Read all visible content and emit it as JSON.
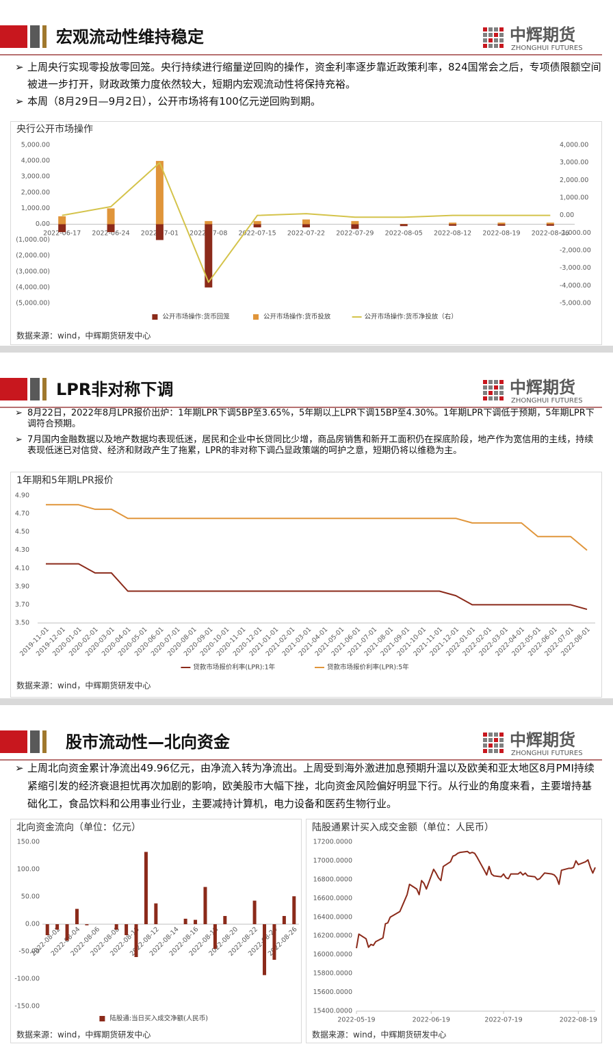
{
  "logo": {
    "name": "中辉期货",
    "name_en": "ZHONGHUI FUTURES"
  },
  "sections": [
    {
      "title": "宏观流动性维持稳定",
      "bullets": [
        "上周央行实现零投放零回笼。央行持续进行缩量逆回购的操作，资金利率逐步靠近政策利率，824国常会之后，专项债限额空间被进一步打开，财政政策力度依然较大，短期内宏观流动性将保持充裕。",
        "本周（8月29日—9月2日），公开市场将有100亿元逆回购到期。"
      ]
    },
    {
      "title": "LPR非对称下调",
      "bullets": [
        "8月22日，2022年8月LPR报价出炉：1年期LPR下调5BP至3.65%，5年期以上LPR下调15BP至4.30%。1年期LPR下调低于预期，5年期LPR下调符合预期。",
        "7月国内金融数据以及地产数据均表现低迷，居民和企业中长贷同比少增，商品房销售和新开工面积仍在探底阶段，地产作为宽信用的主线，持续表现低迷已对信贷、经济和财政产生了拖累，LPR的非对称下调凸显政策端的呵护之意，短期仍将以维稳为主。"
      ]
    },
    {
      "title": "股市流动性—北向资金",
      "bullets": [
        "上周北向资金累计净流出49.96亿元，由净流入转为净流出。上周受到海外激进加息预期升温以及欧美和亚太地区8月PMI持续紧缩引发的经济衰退担忧再次加剧的影响，欧美股市大幅下挫，北向资金风险偏好明显下行。从行业的角度来看，主要增持基础化工，食品饮料和公用事业行业，主要减持计算机，电力设备和医药生物行业。"
      ]
    }
  ],
  "chart_data": [
    {
      "type": "bar",
      "title": "央行公开市场操作",
      "source": "数据来源：wind，中辉期货研发中心",
      "categories": [
        "2022-06-17",
        "2022-06-24",
        "2022-07-01",
        "2022-07-08",
        "2022-07-15",
        "2022-07-22",
        "2022-07-29",
        "2022-08-05",
        "2022-08-12",
        "2022-08-19",
        "2022-08-26"
      ],
      "series": [
        {
          "name": "公开市场操作:货币回笼",
          "color": "#8B2A1A",
          "values": [
            -500,
            -500,
            -1000,
            -4000,
            -200,
            -200,
            -300,
            -120,
            -100,
            -100,
            -100
          ]
        },
        {
          "name": "公开市场操作:货币投放",
          "color": "#E0953A",
          "values": [
            500,
            1000,
            4000,
            200,
            200,
            300,
            200,
            20,
            100,
            100,
            100
          ]
        },
        {
          "name": "公开市场操作:货币净投放（右）",
          "color": "#D4C34A",
          "type": "line",
          "axis": "y2",
          "values": [
            0,
            500,
            3000,
            -3800,
            0,
            100,
            -100,
            -100,
            0,
            0,
            0
          ]
        }
      ],
      "ylim": [
        -5000,
        5000
      ],
      "yticks": [
        {
          "value": 5000,
          "label": "5,000.00"
        },
        {
          "value": 4000,
          "label": "4,000.00"
        },
        {
          "value": 3000,
          "label": "3,000.00"
        },
        {
          "value": 2000,
          "label": "2,000.00"
        },
        {
          "value": 1000,
          "label": "1,000.00"
        },
        {
          "value": 0,
          "label": "0.00"
        },
        {
          "value": -1000,
          "label": "(1,000.00)"
        },
        {
          "value": -2000,
          "label": "(2,000.00)"
        },
        {
          "value": -3000,
          "label": "(3,000.00)"
        },
        {
          "value": -4000,
          "label": "(4,000.00)"
        },
        {
          "value": -5000,
          "label": "(5,000.00)"
        }
      ],
      "negative_tick_color": "#C00000",
      "y2lim": [
        -5000,
        4000
      ],
      "y2ticks": [
        {
          "value": 4000,
          "label": "4,000.00"
        },
        {
          "value": 3000,
          "label": "3,000.00"
        },
        {
          "value": 2000,
          "label": "2,000.00"
        },
        {
          "value": 1000,
          "label": "1,000.00"
        },
        {
          "value": 0,
          "label": "0.00"
        },
        {
          "value": -1000,
          "label": "-1,000.00"
        },
        {
          "value": -2000,
          "label": "-2,000.00"
        },
        {
          "value": -3000,
          "label": "-3,000.00"
        },
        {
          "value": -4000,
          "label": "-4,000.00"
        },
        {
          "value": -5000,
          "label": "-5,000.00"
        }
      ]
    },
    {
      "type": "line",
      "title": "1年期和5年期LPR报价",
      "source": "数据来源：wind，中辉期货研发中心",
      "categories": [
        "2019-11-01",
        "2019-12-01",
        "2020-01-01",
        "2020-02-01",
        "2020-03-01",
        "2020-04-01",
        "2020-05-01",
        "2020-06-01",
        "2020-07-01",
        "2020-08-01",
        "2020-09-01",
        "2020-10-01",
        "2020-11-01",
        "2020-12-01",
        "2021-01-01",
        "2021-02-01",
        "2021-03-01",
        "2021-04-01",
        "2021-05-01",
        "2021-06-01",
        "2021-07-01",
        "2021-08-01",
        "2021-09-01",
        "2021-10-01",
        "2021-11-01",
        "2021-12-01",
        "2022-01-01",
        "2022-02-01",
        "2022-03-01",
        "2022-04-01",
        "2022-05-01",
        "2022-06-01",
        "2022-07-01",
        "2022-08-01"
      ],
      "series": [
        {
          "name": "贷款市场报价利率(LPR):1年",
          "color": "#8B2A1A",
          "values": [
            4.15,
            4.15,
            4.15,
            4.05,
            4.05,
            3.85,
            3.85,
            3.85,
            3.85,
            3.85,
            3.85,
            3.85,
            3.85,
            3.85,
            3.85,
            3.85,
            3.85,
            3.85,
            3.85,
            3.85,
            3.85,
            3.85,
            3.85,
            3.85,
            3.85,
            3.8,
            3.7,
            3.7,
            3.7,
            3.7,
            3.7,
            3.7,
            3.7,
            3.65
          ]
        },
        {
          "name": "贷款市场报价利率(LPR):5年",
          "color": "#E0953A",
          "values": [
            4.8,
            4.8,
            4.8,
            4.75,
            4.75,
            4.65,
            4.65,
            4.65,
            4.65,
            4.65,
            4.65,
            4.65,
            4.65,
            4.65,
            4.65,
            4.65,
            4.65,
            4.65,
            4.65,
            4.65,
            4.65,
            4.65,
            4.65,
            4.65,
            4.65,
            4.65,
            4.6,
            4.6,
            4.6,
            4.6,
            4.45,
            4.45,
            4.45,
            4.3
          ]
        }
      ],
      "ylim": [
        3.5,
        4.9
      ],
      "yticks": [
        {
          "value": 4.9,
          "label": "4.90"
        },
        {
          "value": 4.7,
          "label": "4.70"
        },
        {
          "value": 4.5,
          "label": "4.50"
        },
        {
          "value": 4.3,
          "label": "4.30"
        },
        {
          "value": 4.1,
          "label": "4.10"
        },
        {
          "value": 3.9,
          "label": "3.90"
        },
        {
          "value": 3.7,
          "label": "3.70"
        },
        {
          "value": 3.5,
          "label": "3.50"
        }
      ]
    },
    {
      "type": "bar",
      "title": "北向资金流向（单位：亿元）",
      "source": "数据来源：wind，中辉期货研发中心",
      "categories": [
        null,
        "2022-08-02",
        null,
        "2022-08-04",
        null,
        "2022-08-06",
        null,
        "2022-08-08",
        null,
        "2022-08-10",
        null,
        "2022-08-12",
        null,
        "2022-08-14",
        null,
        "2022-08-16",
        null,
        "2022-08-18",
        null,
        "2022-08-20",
        null,
        "2022-08-22",
        null,
        "2022-08-24",
        null,
        "2022-08-26"
      ],
      "series": [
        {
          "name": "陆股通:当日买入成交净额(人民币)",
          "color": "#8B2A1A",
          "values": [
            -20,
            -10,
            -30,
            28,
            -2,
            null,
            null,
            -10,
            -20,
            -60,
            132,
            38,
            null,
            null,
            10,
            8,
            68,
            -45,
            15,
            null,
            null,
            43,
            -93,
            -65,
            15,
            51
          ]
        }
      ],
      "ylim": [
        -150,
        150
      ],
      "yticks": [
        {
          "value": 150,
          "label": "150.00"
        },
        {
          "value": 100,
          "label": "100.00"
        },
        {
          "value": 50,
          "label": "50.00"
        },
        {
          "value": 0,
          "label": "0.00"
        },
        {
          "value": -50,
          "label": "-50.00"
        },
        {
          "value": -100,
          "label": "-100.00"
        },
        {
          "value": -150,
          "label": "-150.00"
        }
      ]
    },
    {
      "type": "line",
      "title": "陆股通累计买入成交金额（单位：人民币）",
      "source": "数据来源：wind，中辉期货研发中心",
      "x": [
        "2022-05-19",
        "2022-05-20",
        "2022-05-23",
        "2022-05-24",
        "2022-05-25",
        "2022-05-26",
        "2022-05-27",
        "2022-05-30",
        "2022-05-31",
        "2022-06-01",
        "2022-06-02",
        "2022-06-06",
        "2022-06-07",
        "2022-06-08",
        "2022-06-09",
        "2022-06-10",
        "2022-06-13",
        "2022-06-14",
        "2022-06-15",
        "2022-06-16",
        "2022-06-17",
        "2022-06-20",
        "2022-06-21",
        "2022-06-22",
        "2022-06-23",
        "2022-06-24",
        "2022-06-27",
        "2022-06-28",
        "2022-06-29",
        "2022-06-30",
        "2022-07-01",
        "2022-07-04",
        "2022-07-05",
        "2022-07-06",
        "2022-07-07",
        "2022-07-08",
        "2022-07-11",
        "2022-07-12",
        "2022-07-13",
        "2022-07-14",
        "2022-07-15",
        "2022-07-18",
        "2022-07-19",
        "2022-07-20",
        "2022-07-21",
        "2022-07-22",
        "2022-07-25",
        "2022-07-26",
        "2022-07-27",
        "2022-07-28",
        "2022-07-29",
        "2022-08-01",
        "2022-08-02",
        "2022-08-03",
        "2022-08-04",
        "2022-08-05",
        "2022-08-08",
        "2022-08-09",
        "2022-08-10",
        "2022-08-11",
        "2022-08-12",
        "2022-08-15",
        "2022-08-16",
        "2022-08-17",
        "2022-08-18",
        "2022-08-19",
        "2022-08-22",
        "2022-08-23",
        "2022-08-24",
        "2022-08-25",
        "2022-08-26"
      ],
      "values": [
        16070,
        16220,
        16170,
        16080,
        16110,
        16100,
        16140,
        16180,
        16330,
        16340,
        16400,
        16460,
        16520,
        16580,
        16640,
        16750,
        16700,
        16640,
        16790,
        16760,
        16700,
        16910,
        16870,
        16820,
        16790,
        16940,
        16990,
        17050,
        17060,
        17080,
        17090,
        17100,
        17080,
        17090,
        17080,
        17040,
        16900,
        16850,
        16940,
        16860,
        16840,
        16830,
        16860,
        16820,
        16810,
        16860,
        16860,
        16880,
        16850,
        16870,
        16840,
        16830,
        16800,
        16810,
        16840,
        16870,
        16860,
        16850,
        16820,
        16750,
        16900,
        16920,
        16920,
        16930,
        17000,
        16960,
        16990,
        17010,
        16930,
        16870,
        16930
      ],
      "color": "#8B2A1A",
      "xlim": [
        "2022-05-19",
        "2022-08-26"
      ],
      "xticks": [
        "2022-05-19",
        "2022-06-19",
        "2022-07-19",
        "2022-08-19"
      ],
      "ylim": [
        15400,
        17200
      ],
      "yticks": [
        {
          "value": 17200,
          "label": "17200.0000"
        },
        {
          "value": 17000,
          "label": "17000.0000"
        },
        {
          "value": 16800,
          "label": "16800.0000"
        },
        {
          "value": 16600,
          "label": "16600.0000"
        },
        {
          "value": 16400,
          "label": "16400.0000"
        },
        {
          "value": 16200,
          "label": "16200.0000"
        },
        {
          "value": 16000,
          "label": "16000.0000"
        },
        {
          "value": 15800,
          "label": "15800.0000"
        },
        {
          "value": 15600,
          "label": "15600.0000"
        },
        {
          "value": 15400,
          "label": "15400.0000"
        }
      ]
    }
  ]
}
